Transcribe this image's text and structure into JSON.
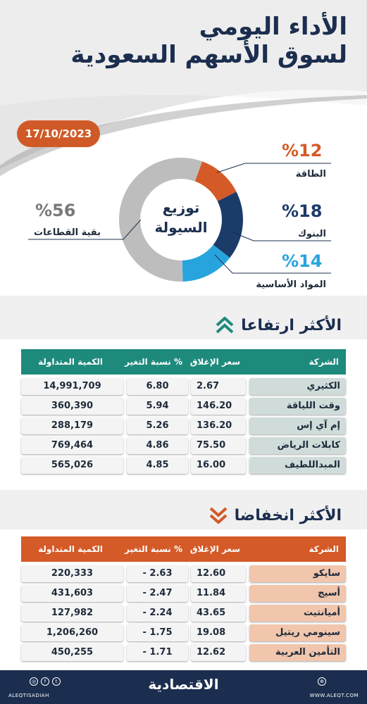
{
  "header": {
    "title_line1": "الأداء اليومي",
    "title_line2": "لسوق الأسهم السعودية",
    "date": "17/10/2023"
  },
  "liquidity": {
    "center_line1": "توزيع",
    "center_line2": "السيولة",
    "segments": [
      {
        "label": "الطاقة",
        "value": "%12",
        "percent": 12,
        "color": "#d45a27"
      },
      {
        "label": "البنوك",
        "value": "%18",
        "percent": 18,
        "color": "#1b3b68"
      },
      {
        "label": "المواد الأساسية",
        "value": "%14",
        "percent": 14,
        "color": "#27a4dd"
      },
      {
        "label": "بقية القطاعات",
        "value": "%56",
        "percent": 56,
        "color": "#bdbdbd"
      }
    ]
  },
  "gainers": {
    "title": "الأكثر ارتفاعا",
    "header_color": "#1e8a7c",
    "columns": {
      "company": "الشركة",
      "close": "سعر الإغلاق",
      "change": "نسبة التغير %",
      "volume": "الكمية المتداولة"
    },
    "rows": [
      {
        "company": "الكثيري",
        "close": "2.67",
        "change": "6.80",
        "volume": "14,991,709"
      },
      {
        "company": "وقت اللياقة",
        "close": "146.20",
        "change": "5.94",
        "volume": "360,390"
      },
      {
        "company": "إم آي إس",
        "close": "136.20",
        "change": "5.26",
        "volume": "288,179"
      },
      {
        "company": "كابلات الرياض",
        "close": "75.50",
        "change": "4.86",
        "volume": "769,464"
      },
      {
        "company": "المبداللطيف",
        "close": "16.00",
        "change": "4.85",
        "volume": "565,026"
      }
    ]
  },
  "losers": {
    "title": "الأكثر انخفاضا",
    "header_color": "#d45a27",
    "columns": {
      "company": "الشركة",
      "close": "سعر الإغلاق",
      "change": "نسبة التغير %",
      "volume": "الكمية المتداولة"
    },
    "rows": [
      {
        "company": "سايكو",
        "close": "12.60",
        "change": "- 2.63",
        "volume": "220,333"
      },
      {
        "company": "أسيج",
        "close": "11.84",
        "change": "- 2.47",
        "volume": "431,603"
      },
      {
        "company": "أميانتيت",
        "close": "43.65",
        "change": "- 2.24",
        "volume": "127,982"
      },
      {
        "company": "سينومي ريتيل",
        "close": "19.08",
        "change": "- 1.75",
        "volume": "1,206,260"
      },
      {
        "company": "التأمين العربية",
        "close": "12.62",
        "change": "- 1.71",
        "volume": "450,255"
      }
    ]
  },
  "footer": {
    "brand": "الاقتصادية",
    "handle": "ALEQTISADIAH",
    "site": "WWW.ALEQT.COM"
  }
}
